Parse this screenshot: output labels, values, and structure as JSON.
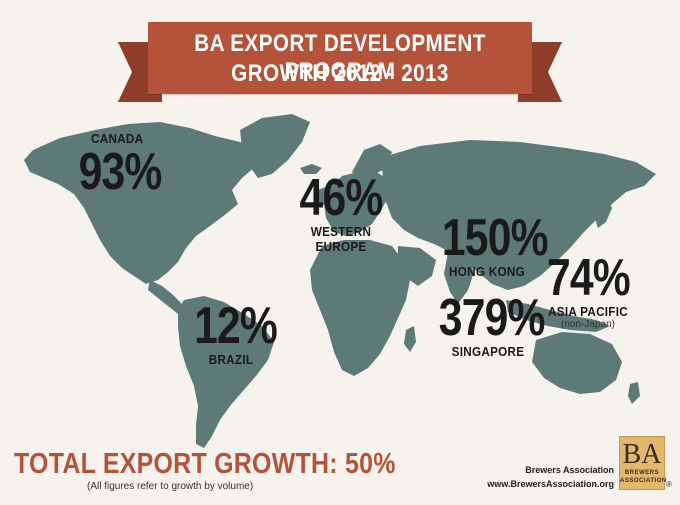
{
  "title": {
    "line1": "BA EXPORT DEVELOPMENT PROGRAM",
    "line2": "GROWTH 2012 - 2013"
  },
  "regions": [
    {
      "key": "canada",
      "value": "93%",
      "label": "CANADA"
    },
    {
      "key": "western_europe",
      "value": "46%",
      "label": "WESTERN EUROPE"
    },
    {
      "key": "hong_kong",
      "value": "150%",
      "label": "HONG KONG"
    },
    {
      "key": "asia_pacific",
      "value": "74%",
      "label": "ASIA PACIFIC",
      "sublabel": "(non-Japan)"
    },
    {
      "key": "brazil",
      "value": "12%",
      "label": "BRAZIL"
    },
    {
      "key": "singapore",
      "value": "379%",
      "label": "SINGAPORE"
    }
  ],
  "total": {
    "text": "TOTAL EXPORT GROWTH: 50%"
  },
  "note": "(All figures refer to growth by volume)",
  "credit": {
    "name": "Brewers Association",
    "url": "www.BrewersAssociation.org"
  },
  "logo": {
    "letters": "BA",
    "line1": "BREWERS",
    "line2": "ASSOCIATION",
    "mark": "®"
  },
  "colors": {
    "accent": "#b4533a",
    "land": "#5d7a77",
    "background": "#f6f2ee"
  }
}
